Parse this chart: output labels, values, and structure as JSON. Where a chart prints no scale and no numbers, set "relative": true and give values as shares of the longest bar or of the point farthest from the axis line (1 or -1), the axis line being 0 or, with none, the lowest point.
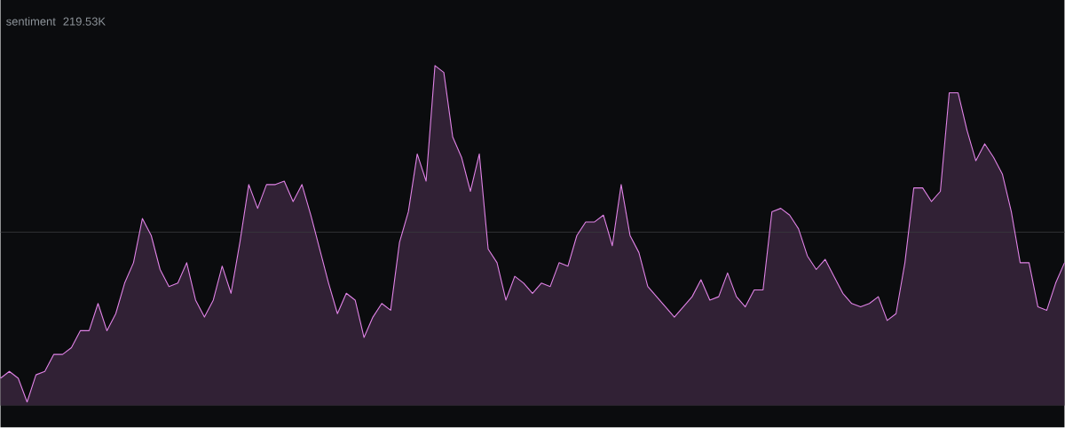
{
  "chart_data": {
    "type": "area",
    "title": "sentiment",
    "subtitle": "219.53K",
    "relative": true,
    "color": "#e083e6",
    "categories": [
      null,
      null,
      null,
      null,
      null,
      null,
      null,
      null,
      null,
      null,
      null,
      null,
      null,
      null,
      null,
      null,
      null,
      null,
      null,
      null,
      null,
      null,
      null,
      null,
      null,
      null,
      null,
      null,
      null,
      null,
      null,
      null,
      null,
      null,
      null,
      null,
      null,
      null,
      null,
      null,
      null,
      null,
      null,
      null,
      null,
      null,
      null,
      null,
      null,
      null,
      null,
      null,
      null,
      null,
      null,
      null,
      null,
      null,
      null,
      null,
      null,
      null,
      null,
      null,
      null,
      null,
      null,
      null,
      null,
      null,
      null,
      null,
      null,
      null,
      null,
      null,
      null,
      null,
      null,
      null,
      null,
      null,
      null,
      null,
      null,
      null,
      null,
      null,
      null,
      null,
      null,
      null,
      null,
      null,
      null,
      null,
      null,
      null,
      null,
      null,
      null,
      null,
      null,
      null,
      null,
      null,
      null,
      null,
      null,
      null,
      null,
      null,
      null,
      null,
      null,
      null,
      null,
      null,
      null,
      null,
      null
    ],
    "values": [
      0.08,
      0.1,
      0.08,
      0.01,
      0.09,
      0.1,
      0.15,
      0.15,
      0.17,
      0.22,
      0.22,
      0.3,
      0.22,
      0.27,
      0.36,
      0.42,
      0.55,
      0.5,
      0.4,
      0.35,
      0.36,
      0.42,
      0.31,
      0.26,
      0.31,
      0.41,
      0.33,
      0.48,
      0.65,
      0.58,
      0.65,
      0.65,
      0.66,
      0.6,
      0.65,
      0.56,
      0.46,
      0.36,
      0.27,
      0.33,
      0.31,
      0.2,
      0.26,
      0.3,
      0.28,
      0.48,
      0.57,
      0.74,
      0.66,
      1,
      0.98,
      0.79,
      0.73,
      0.63,
      0.74,
      0.46,
      0.42,
      0.31,
      0.38,
      0.36,
      0.33,
      0.36,
      0.35,
      0.42,
      0.41,
      0.5,
      0.54,
      0.54,
      0.56,
      0.47,
      0.65,
      0.5,
      0.45,
      0.35,
      0.32,
      0.29,
      0.26,
      0.29,
      0.32,
      0.37,
      0.31,
      0.32,
      0.39,
      0.32,
      0.29,
      0.34,
      0.34,
      0.57,
      0.58,
      0.56,
      0.52,
      0.44,
      0.4,
      0.43,
      0.38,
      0.33,
      0.3,
      0.29,
      0.3,
      0.32,
      0.25,
      0.27,
      0.42,
      0.64,
      0.64,
      0.6,
      0.63,
      0.92,
      0.92,
      0.81,
      0.72,
      0.77,
      0.73,
      0.68,
      0.57,
      0.42,
      0.42,
      0.29,
      0.28,
      0.36,
      0.42
    ],
    "ref_lines": [
      {
        "axis": "y",
        "value": 0.51,
        "color": "#3a3b3f"
      }
    ]
  }
}
